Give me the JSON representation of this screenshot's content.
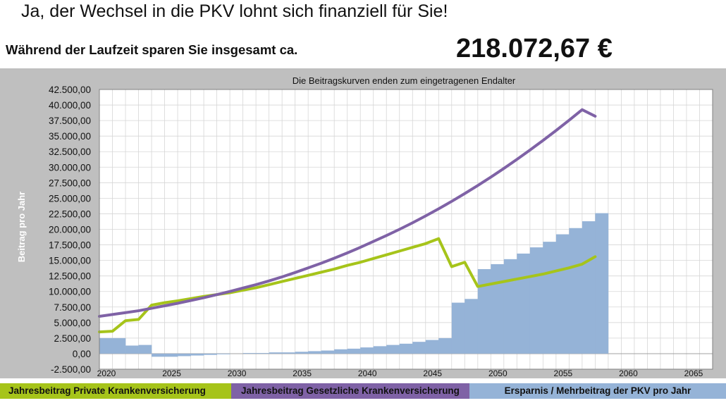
{
  "header": {
    "headline": "Ja, der Wechsel in die PKV lohnt sich finanziell für Sie!",
    "savings_label": "Während der Laufzeit sparen Sie insgesamt ca.",
    "savings_total": "218.072,67 €"
  },
  "chart_data": {
    "type": "line+bar",
    "title": "Die Beitragskurven enden zum eingetragenen Endalter",
    "ylabel": "Beitrag pro Jahr",
    "xlabel": "",
    "xlim": [
      2020,
      2067
    ],
    "ylim": [
      -2500,
      42500
    ],
    "y_ticks": [
      "42.500,00",
      "40.000,00",
      "37.500,00",
      "35.000,00",
      "32.500,00",
      "30.000,00",
      "27.500,00",
      "25.000,00",
      "22.500,00",
      "20.000,00",
      "17.500,00",
      "15.000,00",
      "12.500,00",
      "10.000,00",
      "7.500,00",
      "5.000,00",
      "2.500,00",
      "0,00",
      "-2.500,00"
    ],
    "y_tick_values": [
      42500,
      40000,
      37500,
      35000,
      32500,
      30000,
      27500,
      25000,
      22500,
      20000,
      17500,
      15000,
      12500,
      10000,
      7500,
      5000,
      2500,
      0,
      -2500
    ],
    "x_ticks": [
      "2020",
      "2025",
      "2030",
      "2035",
      "2040",
      "2045",
      "2050",
      "2055",
      "2060",
      "2065"
    ],
    "x_tick_values": [
      2020,
      2025,
      2030,
      2035,
      2040,
      2045,
      2050,
      2055,
      2060,
      2065
    ],
    "grid": true,
    "legend_position": "bottom",
    "series": [
      {
        "name": "Jahresbeitrag Private Krankenversicherung",
        "kind": "line",
        "color": "#a6c41a",
        "x": [
          2020,
          2021,
          2022,
          2023,
          2024,
          2025,
          2026,
          2027,
          2028,
          2029,
          2030,
          2031,
          2032,
          2033,
          2034,
          2035,
          2036,
          2037,
          2038,
          2039,
          2040,
          2041,
          2042,
          2043,
          2044,
          2045,
          2046,
          2047,
          2048,
          2049,
          2050,
          2051,
          2052,
          2053,
          2054,
          2055,
          2056,
          2057,
          2058
        ],
        "values": [
          3500,
          3600,
          5300,
          5500,
          7800,
          8200,
          8500,
          8850,
          9200,
          9500,
          9800,
          10200,
          10600,
          11100,
          11600,
          12100,
          12600,
          13100,
          13600,
          14200,
          14700,
          15300,
          15900,
          16500,
          17100,
          17700,
          18500,
          14000,
          14700,
          10800,
          11200,
          11600,
          12000,
          12400,
          12800,
          13300,
          13800,
          14400,
          15600
        ]
      },
      {
        "name": "Jahresbeitrag Gesetzliche Krankenversicherung",
        "kind": "line",
        "color": "#7f62a6",
        "x": [
          2020,
          2021,
          2022,
          2023,
          2024,
          2025,
          2026,
          2027,
          2028,
          2029,
          2030,
          2031,
          2032,
          2033,
          2034,
          2035,
          2036,
          2037,
          2038,
          2039,
          2040,
          2041,
          2042,
          2043,
          2044,
          2045,
          2046,
          2047,
          2048,
          2049,
          2050,
          2051,
          2052,
          2053,
          2054,
          2055,
          2056,
          2057,
          2058
        ],
        "values": [
          6000,
          6300,
          6600,
          6900,
          7300,
          7700,
          8100,
          8550,
          9000,
          9500,
          10000,
          10550,
          11100,
          11700,
          12350,
          13050,
          13800,
          14550,
          15350,
          16200,
          17100,
          18050,
          19000,
          20000,
          21050,
          22150,
          23300,
          24500,
          25750,
          27050,
          28400,
          29800,
          31250,
          32750,
          34300,
          35900,
          37550,
          39250,
          38200
        ]
      },
      {
        "name": "Ersparnis / Mehrbeitrag der PKV pro Jahr",
        "kind": "bar",
        "color": "#95b3d7",
        "x": [
          2020,
          2021,
          2022,
          2023,
          2024,
          2025,
          2026,
          2027,
          2028,
          2029,
          2030,
          2031,
          2032,
          2033,
          2034,
          2035,
          2036,
          2037,
          2038,
          2039,
          2040,
          2041,
          2042,
          2043,
          2044,
          2045,
          2046,
          2047,
          2048,
          2049,
          2050,
          2051,
          2052,
          2053,
          2054,
          2055,
          2056,
          2057,
          2058
        ],
        "values": [
          2500,
          2500,
          1300,
          1400,
          -500,
          -500,
          -400,
          -300,
          -200,
          -100,
          0,
          100,
          100,
          200,
          200,
          300,
          400,
          500,
          700,
          800,
          1000,
          1200,
          1400,
          1600,
          1900,
          2200,
          2500,
          8200,
          8800,
          13600,
          14400,
          15200,
          16100,
          17100,
          18000,
          19200,
          20200,
          21300,
          22600
        ]
      }
    ]
  },
  "legend": {
    "private_label": "Jahresbeitrag Private Krankenversicherung",
    "public_label": "Jahresbeitrag Gesetzliche Krankenversicherung",
    "savings_label": "Ersparnis / Mehrbeitrag der PKV pro Jahr",
    "private_color": "#a6c41a",
    "public_color": "#7f62a6",
    "savings_color": "#95b3d7"
  }
}
